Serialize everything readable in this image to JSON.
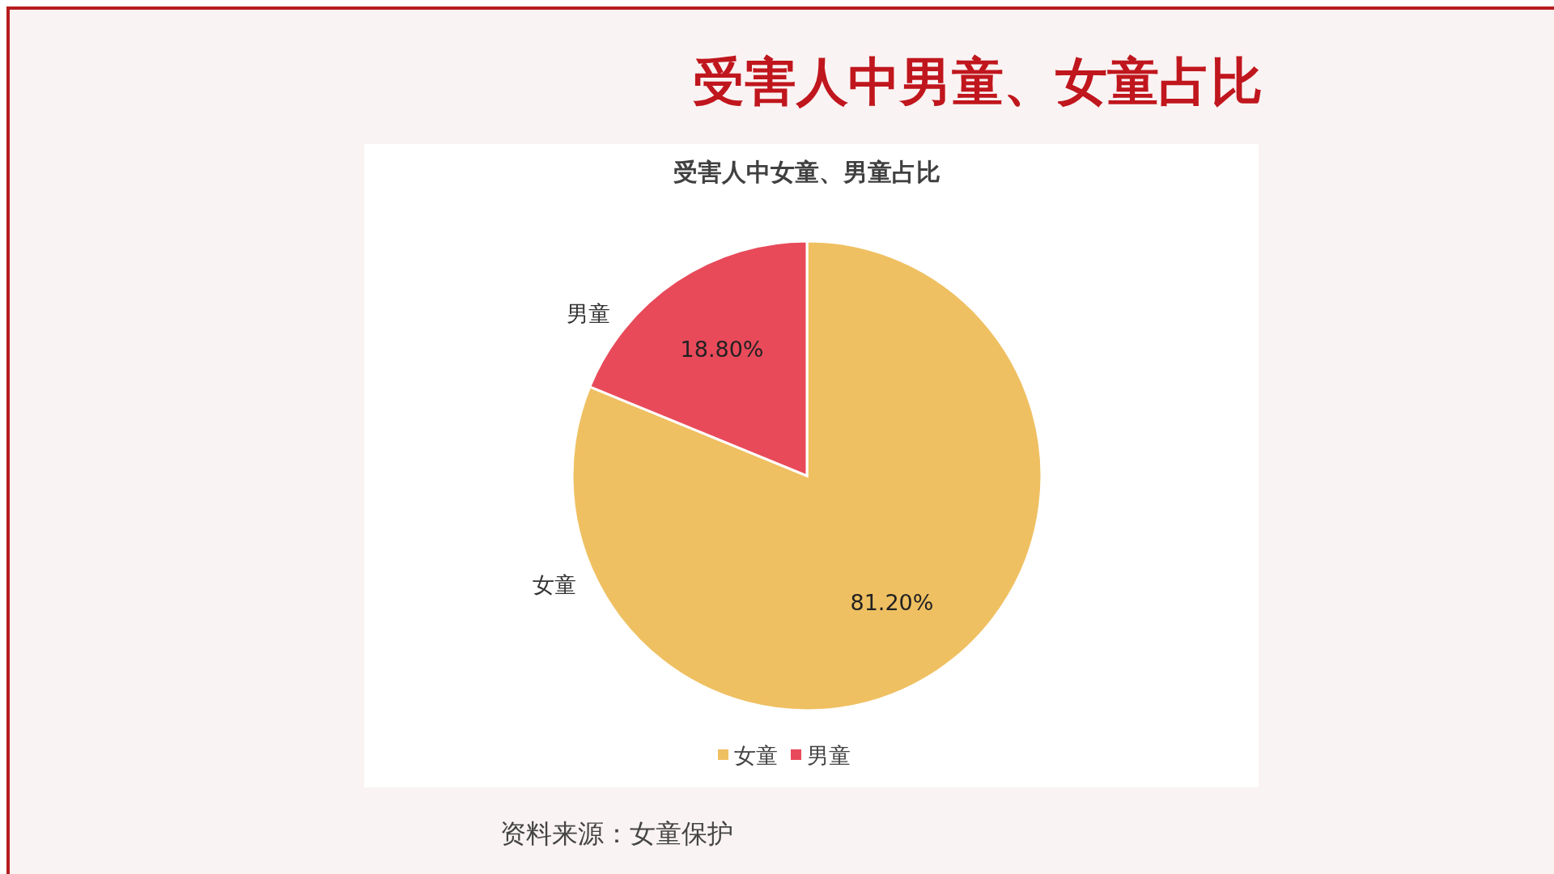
{
  "chart_data": {
    "type": "pie",
    "title": "受害人中男童、女童占比",
    "subtitle": "受害人中女童、男童占比",
    "categories": [
      "女童",
      "男童"
    ],
    "values": [
      81.2,
      18.8
    ],
    "colors": [
      "#efc062",
      "#e84a5a"
    ],
    "value_labels": [
      "81.20%",
      "18.80%"
    ],
    "legend": "bottom",
    "annotations": [
      "资料来源：女童保护"
    ]
  }
}
